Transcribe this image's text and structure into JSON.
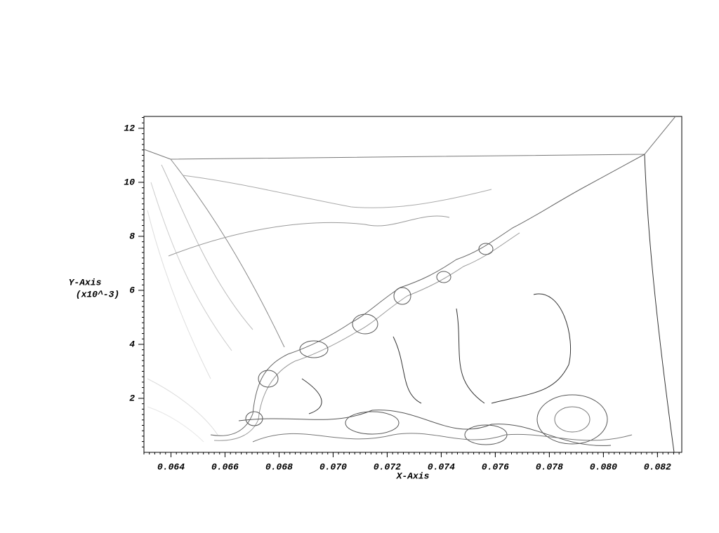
{
  "chart_data": {
    "type": "contour",
    "x_label": "X-Axis",
    "y_label": "Y-Axis",
    "y_label_sub": "(x10^-3)",
    "xlim": [
      0.063,
      0.0829
    ],
    "ylim": [
      0,
      12.44
    ],
    "xticks": [
      0.064,
      0.066,
      0.068,
      {
        "value": 0.07,
        "label": "0.070"
      },
      0.072,
      0.074,
      0.076,
      0.078,
      {
        "value": 0.08,
        "label": "0.080"
      },
      0.082
    ],
    "yticks": [
      2,
      4,
      6,
      8,
      10,
      12
    ],
    "grid": false,
    "color": "#000000"
  }
}
